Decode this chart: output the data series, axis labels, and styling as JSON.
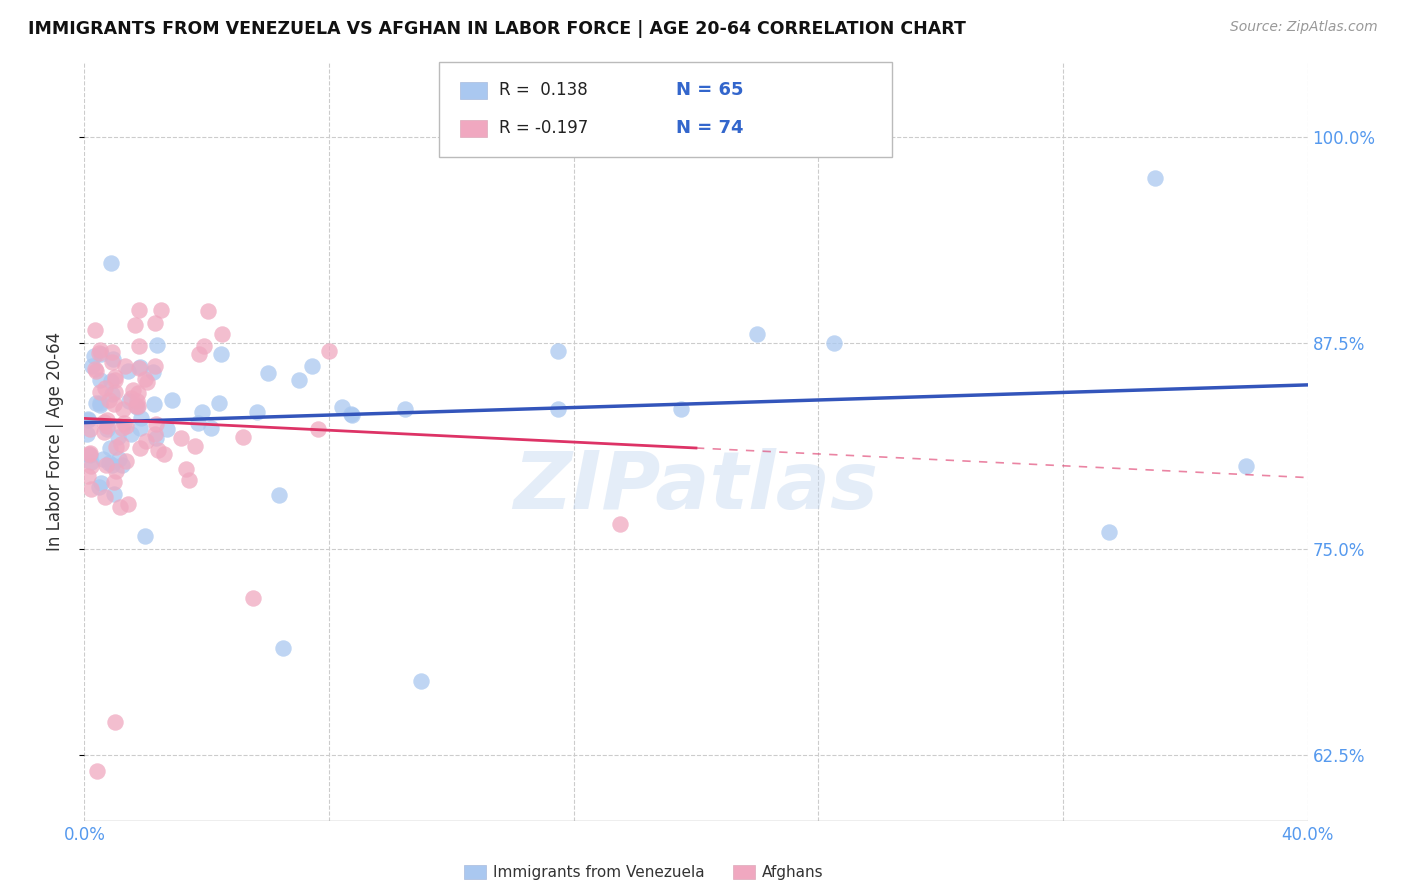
{
  "title": "IMMIGRANTS FROM VENEZUELA VS AFGHAN IN LABOR FORCE | AGE 20-64 CORRELATION CHART",
  "source": "Source: ZipAtlas.com",
  "ylabel": "In Labor Force | Age 20-64",
  "xlim": [
    0.0,
    0.4
  ],
  "ylim": [
    0.585,
    1.045
  ],
  "yticks": [
    0.625,
    0.75,
    0.875,
    1.0
  ],
  "ytick_labels": [
    "62.5%",
    "75.0%",
    "87.5%",
    "100.0%"
  ],
  "xticks": [
    0.0,
    0.08,
    0.16,
    0.24,
    0.32,
    0.4
  ],
  "r_venezuela": 0.138,
  "n_venezuela": 65,
  "r_afghan": -0.197,
  "n_afghan": 74,
  "color_venezuela": "#aac8f0",
  "color_afghan": "#f0a8c0",
  "line_color_venezuela": "#3355bb",
  "line_color_afghan": "#dd3366",
  "watermark": "ZIPatlas",
  "grid_color": "#cccccc"
}
